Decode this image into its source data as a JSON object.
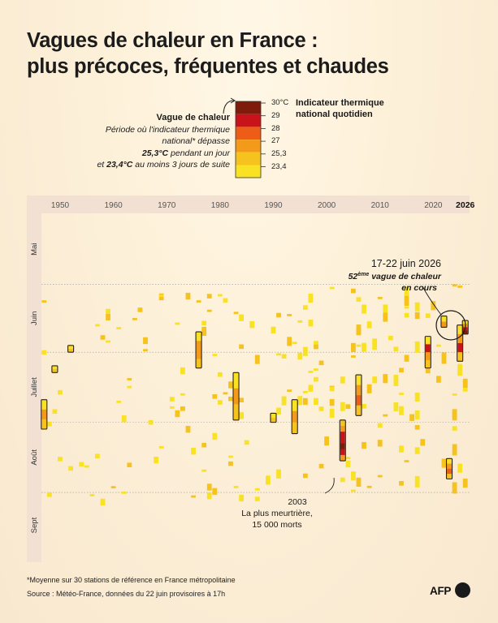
{
  "title_line1": "Vagues de chaleur en France :",
  "title_line2": "plus précoces, fréquentes et chaudes",
  "legend": {
    "label": "Vague de chaleur",
    "line2": "Période où l'indicateur thermique",
    "line3": "national* dépasse",
    "val1": "25,3°C",
    "line4_rest": " pendant un jour",
    "line5_pre": "et ",
    "val2": "23,4°C",
    "line5_rest": " au moins 3 jours de suite",
    "indicator_title_1": "Indicateur thermique",
    "indicator_title_2": "national quotidien",
    "scale": [
      "30°C",
      "29",
      "28",
      "27",
      "25,3",
      "23,4"
    ],
    "colors": [
      "#7e1b0b",
      "#c9131b",
      "#ee5d18",
      "#f39a1a",
      "#f6c21e",
      "#f9e224"
    ]
  },
  "footnote": "*Moyenne sur 30 stations de référence en France métropolitaine",
  "source": "Source : Météo-France, données du 22 juin provisoires à 17h",
  "brand": "AFP",
  "annotations": {
    "current_1": "17-22 juin 2026",
    "current_2_num": "52",
    "current_2_sup": "ème",
    "current_2_rest": " vague de chaleur",
    "current_3": "en cours",
    "y2003_1": "2003",
    "y2003_2": "La plus meurtrière,",
    "y2003_3": "15 000 morts"
  },
  "chart_data": {
    "type": "heatmap",
    "title": "Vagues de chaleur en France : plus précoces, fréquentes et chaudes",
    "x_axis": {
      "label": "",
      "range": [
        1947,
        2026
      ],
      "ticks": [
        1950,
        1960,
        1970,
        1980,
        1990,
        2000,
        2010,
        2020,
        2026
      ]
    },
    "y_axis": {
      "label": "",
      "months": [
        "Mai",
        "Juin",
        "Juillet",
        "Août",
        "Sept"
      ],
      "range_day_of_year": [
        121,
        273
      ]
    },
    "color_scale": {
      "thresholds": [
        23.4,
        25.3,
        27,
        28,
        29,
        30
      ],
      "unit": "°C"
    },
    "heatwaves": [
      {
        "year": 1947,
        "start": "22 juil.",
        "end": "3 août"
      },
      {
        "year": 1949,
        "start": "7 juil.",
        "end": "9 juil."
      },
      {
        "year": 1952,
        "start": "28 juin",
        "end": "30 juin"
      },
      {
        "year": 1976,
        "start": "22 juin",
        "end": "7 juil."
      },
      {
        "year": 1983,
        "start": "10 juil.",
        "end": "30 juil."
      },
      {
        "year": 1990,
        "start": "28 juil.",
        "end": "31 juil."
      },
      {
        "year": 1994,
        "start": "22 juil.",
        "end": "5 août"
      },
      {
        "year": 2003,
        "start": "31 juil.",
        "end": "17 août"
      },
      {
        "year": 2006,
        "start": "11 juil.",
        "end": "28 juil."
      },
      {
        "year": 2019,
        "start": "24 juin",
        "end": "7 juil."
      },
      {
        "year": 2022,
        "start": "15 juin",
        "end": "19 juin"
      },
      {
        "year": 2023,
        "start": "17 août",
        "end": "25 août"
      },
      {
        "year": 2025,
        "start": "19 juin",
        "end": "4 juil."
      },
      {
        "year": 2026,
        "start": "17 juin",
        "end": "22 juin"
      }
    ]
  }
}
